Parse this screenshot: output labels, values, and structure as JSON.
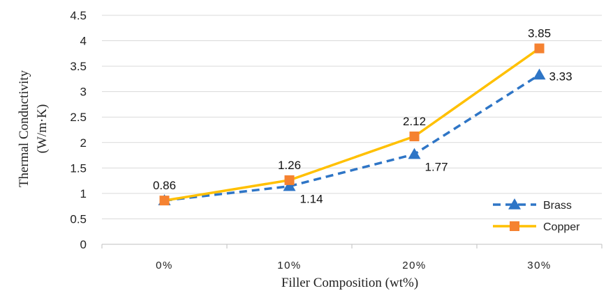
{
  "chart_data": {
    "type": "line",
    "categories": [
      "0%",
      "10%",
      "20%",
      "30%"
    ],
    "series": [
      {
        "name": "Brass",
        "values": [
          0.86,
          1.14,
          1.77,
          3.33
        ],
        "labels": [
          "0.86",
          "1.14",
          "1.77",
          "3.33"
        ],
        "color": "#2E75C6",
        "line": "dashed",
        "marker": "triangle"
      },
      {
        "name": "Copper",
        "values": [
          0.86,
          1.26,
          2.12,
          3.85
        ],
        "labels": [
          "0.86",
          "1.26",
          "2.12",
          "3.85"
        ],
        "color": "#FFC000",
        "line": "solid",
        "marker": "square",
        "marker_color": "#F58231"
      }
    ],
    "xlabel": "Filler Composition (wt%)",
    "ylabel_line1": "Thermal Conductivity",
    "ylabel_line2": "(W/m·K)",
    "ylim": [
      0,
      4.5
    ],
    "yticks": [
      "0",
      "0.5",
      "1",
      "1.5",
      "2",
      "2.5",
      "3",
      "3.5",
      "4",
      "4.5"
    ],
    "grid": true,
    "legend_position": "bottom-right"
  }
}
